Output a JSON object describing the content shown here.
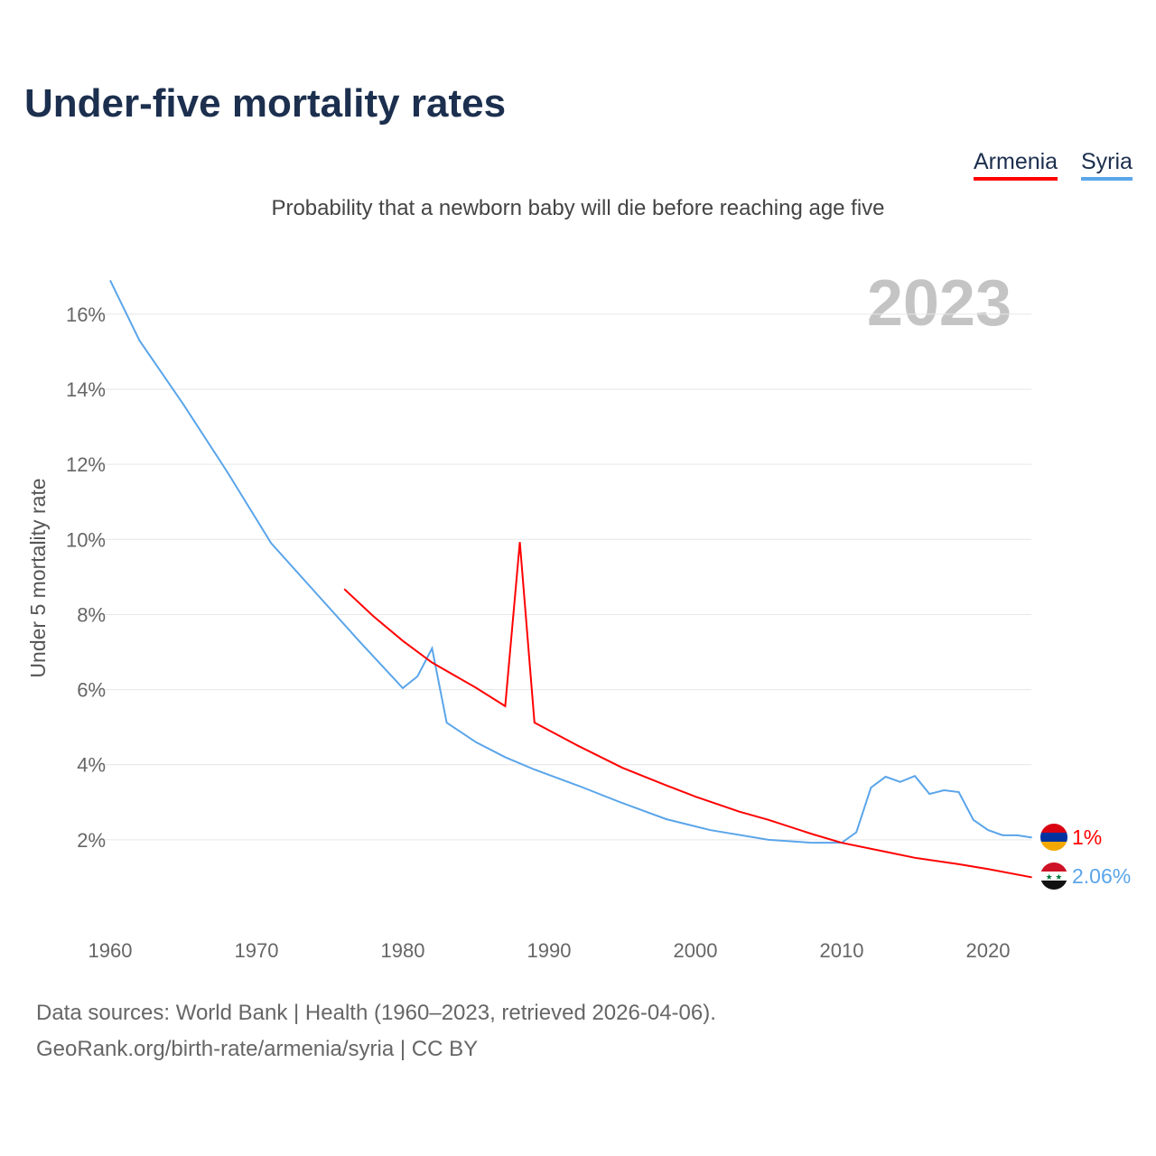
{
  "title": "Under-five mortality rates",
  "subtitle": "Probability that a newborn baby will die before reaching age five",
  "legend": [
    {
      "label": "Armenia",
      "color": "#ff0000"
    },
    {
      "label": "Syria",
      "color": "#5aa5ea"
    }
  ],
  "year_watermark": "2023",
  "footer": {
    "line1": "Data sources: World Bank | Health (1960–2023, retrieved 2026-04-06).",
    "line2": "GeoRank.org/birth-rate/armenia/syria | CC BY"
  },
  "chart_data": {
    "type": "line",
    "title": "Under-five mortality rates",
    "xlabel": "",
    "ylabel": "Under 5 mortality rate",
    "xlim": [
      1960,
      2023
    ],
    "ylim": [
      0,
      17
    ],
    "xticks": [
      "1960",
      "1970",
      "1980",
      "1990",
      "2000",
      "2010",
      "2020"
    ],
    "yticks": [
      "2%",
      "4%",
      "6%",
      "8%",
      "10%",
      "12%",
      "14%",
      "16%"
    ],
    "series": [
      {
        "name": "Syria",
        "color": "#5aa5ea",
        "end_label": "2.06%",
        "x": [
          1960,
          1962,
          1965,
          1968,
          1971,
          1974,
          1977,
          1980,
          1981,
          1982,
          1983,
          1985,
          1987,
          1989,
          1992,
          1995,
          1998,
          2001,
          2005,
          2008,
          2010,
          2011,
          2012,
          2013,
          2014,
          2015,
          2016,
          2017,
          2018,
          2019,
          2020,
          2021,
          2022,
          2023
        ],
        "y": [
          16.9,
          15.3,
          13.6,
          11.8,
          9.9,
          8.6,
          7.3,
          6.04,
          6.35,
          7.1,
          5.12,
          4.6,
          4.2,
          3.87,
          3.44,
          2.98,
          2.55,
          2.26,
          2.0,
          1.92,
          1.92,
          2.2,
          3.39,
          3.68,
          3.54,
          3.7,
          3.22,
          3.32,
          3.27,
          2.53,
          2.26,
          2.12,
          2.12,
          2.06
        ]
      },
      {
        "name": "Armenia",
        "color": "#ff0000",
        "end_label": "1%",
        "x": [
          1976,
          1978,
          1980,
          1982,
          1985,
          1987,
          1988,
          1989,
          1992,
          1995,
          1998,
          2000,
          2003,
          2005,
          2008,
          2010,
          2013,
          2015,
          2018,
          2020,
          2023
        ],
        "y": [
          8.68,
          7.95,
          7.3,
          6.72,
          6.05,
          5.56,
          9.93,
          5.12,
          4.5,
          3.92,
          3.45,
          3.15,
          2.75,
          2.53,
          2.15,
          1.92,
          1.68,
          1.52,
          1.35,
          1.22,
          1.0
        ]
      }
    ],
    "grid": true,
    "legend_position": "top-right"
  }
}
